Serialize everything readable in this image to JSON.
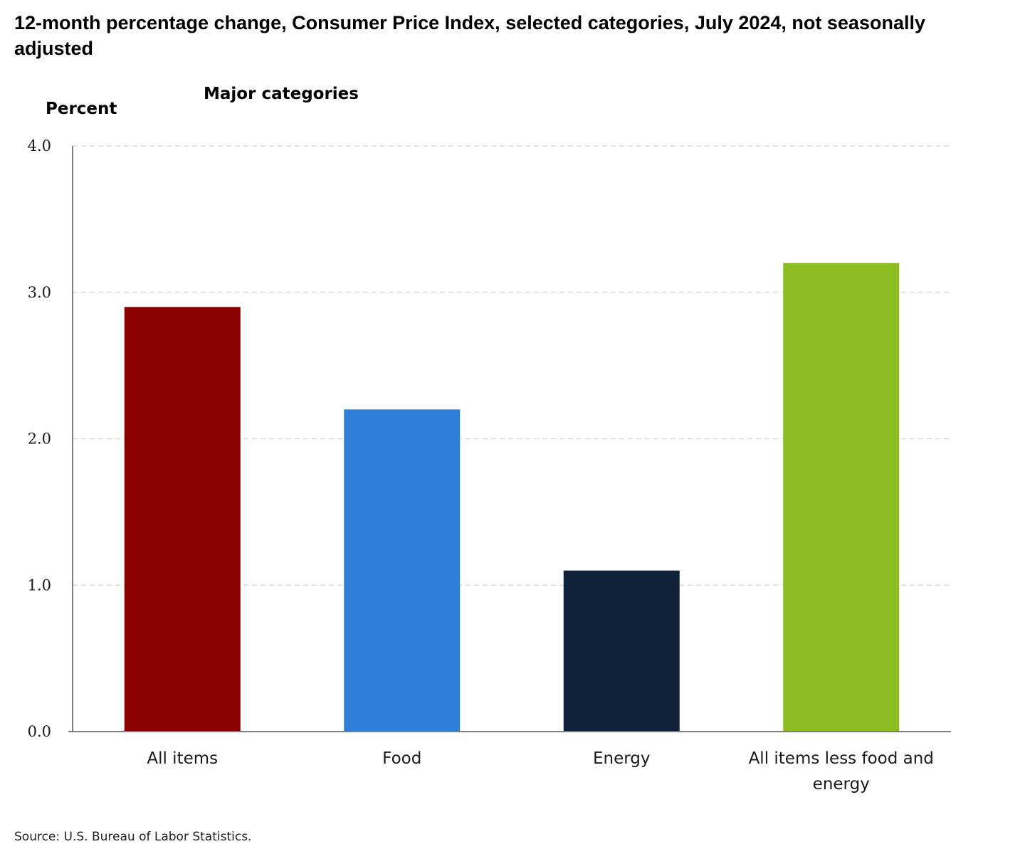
{
  "chart_data": {
    "type": "bar",
    "title": "12-month percentage change, Consumer Price Index, selected categories, July 2024, not seasonally adjusted",
    "subtitle": "Major categories",
    "ylabel": "Percent",
    "xlabel": "",
    "categories": [
      "All items",
      "Food",
      "Energy",
      "All items less food and energy"
    ],
    "category_lines": [
      [
        "All items"
      ],
      [
        "Food"
      ],
      [
        "Energy"
      ],
      [
        "All items less food and",
        "energy"
      ]
    ],
    "values": [
      2.9,
      2.2,
      1.1,
      3.2
    ],
    "colors": [
      "#8b0000",
      "#2f7ed8",
      "#0f2239",
      "#8bbc21"
    ],
    "ylim": [
      0,
      4
    ],
    "yticks": [
      0,
      1,
      2,
      3,
      4
    ],
    "ytick_labels": [
      "0.0",
      "1.0",
      "2.0",
      "3.0",
      "4.0"
    ],
    "grid": true,
    "legend": "none",
    "source": "Source: U.S. Bureau of Labor Statistics."
  }
}
